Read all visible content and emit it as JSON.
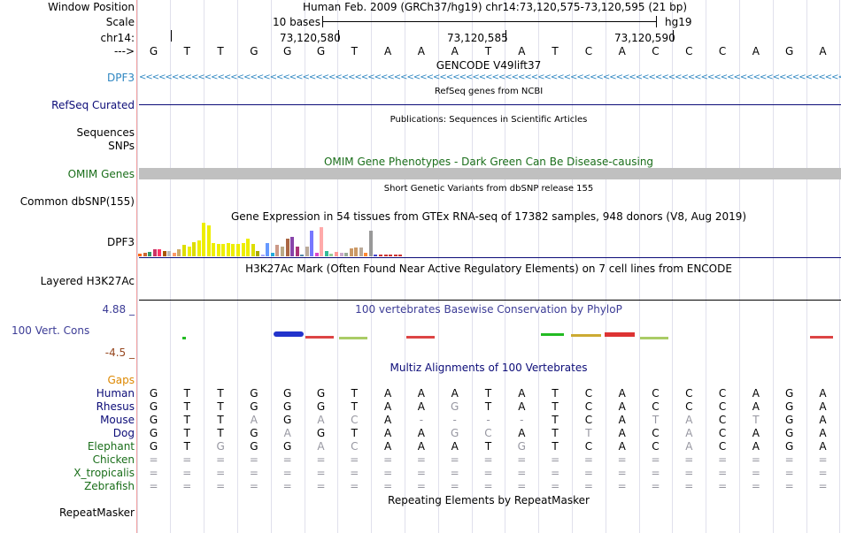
{
  "header": {
    "window_position_label": "Window Position",
    "window_position_value": "Human Feb. 2009 (GRCh37/hg19)   chr14:73,120,575-73,120,595 (21 bp)",
    "scale_label": "Scale",
    "scale_value": "10 bases",
    "assembly": "hg19",
    "chrom_label": "chr14:",
    "coords": [
      "73,120,580",
      "73,120,585",
      "73,120,590"
    ],
    "strand_label": "--->"
  },
  "bases": [
    "G",
    "T",
    "T",
    "G",
    "G",
    "G",
    "T",
    "A",
    "A",
    "A",
    "T",
    "A",
    "T",
    "C",
    "A",
    "C",
    "C",
    "C",
    "A",
    "G",
    "A"
  ],
  "tracks": {
    "gencode": {
      "title": "GENCODE V49lift37",
      "label": "DPF3"
    },
    "refseq": {
      "title": "RefSeq genes from NCBI",
      "label": "RefSeq Curated"
    },
    "publications": {
      "title": "Publications: Sequences in Scientific Articles",
      "label1": "Sequences",
      "label2": "SNPs"
    },
    "omim": {
      "title": "OMIM Gene Phenotypes - Dark Green Can Be Disease-causing",
      "label": "OMIM Genes"
    },
    "dbsnp": {
      "title": "Short Genetic Variants from dbSNP release 155",
      "label": "Common dbSNP(155)"
    },
    "gtex": {
      "title": "Gene Expression in 54 tissues from GTEx RNA-seq of 17382 samples, 948 donors (V8, Aug 2019)",
      "label": "DPF3",
      "values": [
        2,
        3,
        4,
        6,
        6,
        5,
        5,
        3,
        6,
        10,
        9,
        13,
        14,
        30,
        28,
        12,
        11,
        11,
        12,
        11,
        11,
        12,
        16,
        11,
        5,
        1,
        12,
        3,
        10,
        9,
        16,
        17,
        9,
        1,
        9,
        23,
        3,
        26,
        5,
        2,
        4,
        3,
        3,
        7,
        8,
        8,
        3,
        23,
        1,
        1,
        1,
        1,
        1,
        1
      ],
      "colors": [
        "#ff6600",
        "#cc6633",
        "#339966",
        "#cc3366",
        "#ff3366",
        "#aa5500",
        "#bbbbbb",
        "#ff9966",
        "#ccaa66",
        "#dddd00",
        "#eeee00",
        "#dddd00",
        "#eeee00",
        "#eeee00",
        "#eeee00",
        "#eeee00",
        "#eeee00",
        "#eeee00",
        "#eeee00",
        "#eeee00",
        "#eeee00",
        "#eeee00",
        "#eeee00",
        "#dddd00",
        "#aaaa00",
        "#aaaaff",
        "#6699ff",
        "#22aadd",
        "#cc9988",
        "#bbaa88",
        "#aa6644",
        "#8844aa",
        "#aa3377",
        "#5588aa",
        "#bbaa99",
        "#7777ff",
        "#dd44cc",
        "#ffaaaa",
        "#33bb99",
        "#99cc99",
        "#ff9999",
        "#ccaacc",
        "#99aa99",
        "#cc9966",
        "#cc9966",
        "#bbaa99",
        "#ff8833",
        "#999999",
        "#4444cc",
        "#cc3333",
        "#cc3333",
        "#cc3333",
        "#cc3333",
        "#cc3333"
      ]
    },
    "h3k27ac": {
      "title": "H3K27Ac Mark (Often Found Near Active Regulatory Elements) on 7 cell lines from ENCODE",
      "label": "Layered H3K27Ac"
    },
    "conservation": {
      "title": "100 vertebrates Basewise Conservation by PhyloP",
      "label": "100 Vert. Cons",
      "max": "4.88 _",
      "min": "-4.5 _"
    },
    "multiz": {
      "title": "Multiz Alignments of 100 Vertebrates",
      "gaps_label": "Gaps",
      "species": [
        {
          "name": "Human",
          "bases": [
            "G",
            "T",
            "T",
            "G",
            "G",
            "G",
            "T",
            "A",
            "A",
            "A",
            "T",
            "A",
            "T",
            "C",
            "A",
            "C",
            "C",
            "C",
            "A",
            "G",
            "A"
          ],
          "dim": []
        },
        {
          "name": "Rhesus",
          "bases": [
            "G",
            "T",
            "T",
            "G",
            "G",
            "G",
            "T",
            "A",
            "A",
            "G",
            "T",
            "A",
            "T",
            "C",
            "A",
            "C",
            "C",
            "C",
            "A",
            "G",
            "A"
          ],
          "dim": [
            9
          ]
        },
        {
          "name": "Mouse",
          "bases": [
            "G",
            "T",
            "T",
            "A",
            "G",
            "A",
            "C",
            "A",
            "-",
            "-",
            "-",
            "-",
            "T",
            "C",
            "A",
            "T",
            "A",
            "C",
            "T",
            "G",
            "A"
          ],
          "dim": [
            3,
            5,
            6,
            8,
            9,
            10,
            11,
            15,
            16,
            18
          ]
        },
        {
          "name": "Dog",
          "bases": [
            "G",
            "T",
            "T",
            "G",
            "A",
            "G",
            "T",
            "A",
            "A",
            "G",
            "C",
            "A",
            "T",
            "T",
            "A",
            "C",
            "A",
            "C",
            "A",
            "G",
            "A"
          ],
          "dim": [
            4,
            9,
            10,
            13,
            16
          ]
        },
        {
          "name": "Elephant",
          "bases": [
            "G",
            "T",
            "G",
            "G",
            "G",
            "A",
            "C",
            "A",
            "A",
            "A",
            "T",
            "G",
            "T",
            "C",
            "A",
            "C",
            "A",
            "C",
            "A",
            "G",
            "A"
          ],
          "dim": [
            2,
            5,
            6,
            11,
            16
          ]
        },
        {
          "name": "Chicken",
          "bases": [
            "=",
            "=",
            "=",
            "=",
            "=",
            "=",
            "=",
            "=",
            "=",
            "=",
            "=",
            "=",
            "=",
            "=",
            "=",
            "=",
            "=",
            "=",
            "=",
            "=",
            "="
          ],
          "dim": []
        },
        {
          "name": "X_tropicalis",
          "bases": [
            "=",
            "=",
            "=",
            "=",
            "=",
            "=",
            "=",
            "=",
            "=",
            "=",
            "=",
            "=",
            "=",
            "=",
            "=",
            "=",
            "=",
            "=",
            "=",
            "=",
            "="
          ],
          "dim": []
        },
        {
          "name": "Zebrafish",
          "bases": [
            "=",
            "=",
            "=",
            "=",
            "=",
            "=",
            "=",
            "=",
            "=",
            "=",
            "=",
            "=",
            "=",
            "=",
            "=",
            "=",
            "=",
            "=",
            "=",
            "=",
            "="
          ],
          "dim": []
        }
      ]
    },
    "repeatmasker": {
      "title": "Repeating Elements by RepeatMasker",
      "label": "RepeatMasker"
    }
  },
  "colors": {
    "gencode": "#2e86c1",
    "refseq": "#0c0c78",
    "omim": "#1a6e1a",
    "cons": "#3c3c96",
    "cons_min": "#96461e",
    "gaps": "#dd8800",
    "species": "#0c0c78",
    "dim": "#9696a0"
  }
}
